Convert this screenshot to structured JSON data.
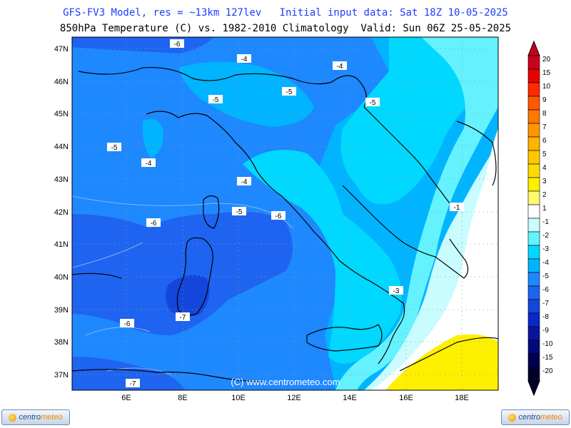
{
  "header": {
    "line1": "GFS-FV3 Model, res = ~13km 127lev   Initial input data: Sat 18Z 10-05-2025",
    "line2": "850hPa Temperature (C) vs. 1982-2010 Climatology  Valid: Sun 06Z 25-05-2025"
  },
  "map": {
    "lat_labels": [
      "47N",
      "46N",
      "45N",
      "44N",
      "43N",
      "42N",
      "41N",
      "40N",
      "39N",
      "38N",
      "37N"
    ],
    "lon_labels": [
      "6E",
      "8E",
      "10E",
      "12E",
      "14E",
      "16E",
      "18E"
    ],
    "watermark": "(C) www.centrometeo.com",
    "contour_labels": [
      "-6",
      "-4",
      "-4",
      "-5",
      "-5",
      "-5",
      "-5",
      "-4",
      "-4",
      "-6",
      "-5",
      "-6",
      "-1",
      "-3",
      "-7",
      "-6",
      "-7"
    ]
  },
  "colorbar": {
    "labels": [
      "20",
      "15",
      "10",
      "9",
      "8",
      "7",
      "6",
      "5",
      "4",
      "3",
      "2",
      "1",
      "-1",
      "-2",
      "-3",
      "-4",
      "-5",
      "-6",
      "-7",
      "-8",
      "-9",
      "-10",
      "-15",
      "-20"
    ],
    "colors": [
      "#c8001e",
      "#e60000",
      "#ff2a00",
      "#ff5a00",
      "#ff7800",
      "#ff9600",
      "#ffb400",
      "#ffc800",
      "#ffdc00",
      "#fff000",
      "#fffa6e",
      "#ffffff",
      "#c8fcff",
      "#64f2ff",
      "#00d8ff",
      "#00b4ff",
      "#1e88ff",
      "#1e64f0",
      "#1446dc",
      "#0a28c8",
      "#0a14a0",
      "#000a78",
      "#000050",
      "#000028"
    ],
    "top_cap_color": "#c8001e",
    "bottom_cap_color": "#000028"
  },
  "logos": {
    "left_text_a": "centro",
    "left_text_b": "meteo",
    "right_text_a": "centro",
    "right_text_b": "meteo"
  }
}
